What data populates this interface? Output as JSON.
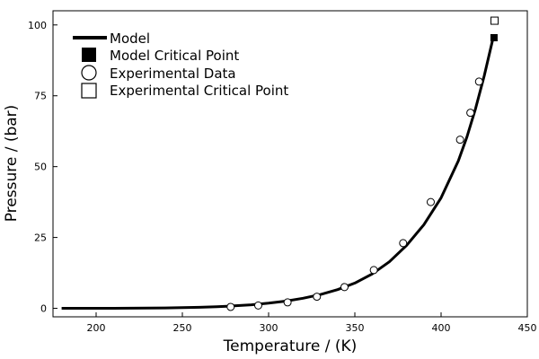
{
  "chart_data": {
    "type": "line",
    "title": "",
    "xlabel": "Temperature / (K)",
    "ylabel": "Pressure / (bar)",
    "xlim": [
      175,
      450
    ],
    "ylim": [
      -3,
      105
    ],
    "xticks": [
      200,
      250,
      300,
      350,
      400,
      450
    ],
    "yticks": [
      0,
      25,
      50,
      75,
      100
    ],
    "grid": false,
    "legend_position": "top-left",
    "series": [
      {
        "name": "Model",
        "kind": "line",
        "color": "#000000",
        "x": [
          180,
          200,
          220,
          240,
          260,
          270,
          280,
          290,
          300,
          310,
          320,
          330,
          340,
          350,
          360,
          370,
          380,
          390,
          400,
          410,
          415,
          420,
          425,
          430
        ],
        "y": [
          0.0,
          0.0,
          0.05,
          0.15,
          0.35,
          0.55,
          0.85,
          1.25,
          1.8,
          2.55,
          3.55,
          4.85,
          6.6,
          8.9,
          12.1,
          16.4,
          22.2,
          29.5,
          39.0,
          52.0,
          60.5,
          70.5,
          82.0,
          95.0
        ]
      },
      {
        "name": "Model Critical Point",
        "kind": "marker",
        "marker": "filled-square",
        "x": [
          430.7
        ],
        "y": [
          95.5
        ]
      },
      {
        "name": "Experimental Data",
        "kind": "marker",
        "marker": "open-circle",
        "x": [
          278,
          294,
          311,
          328,
          344,
          361,
          378,
          394,
          411,
          417,
          422
        ],
        "y": [
          0.5,
          1.0,
          2.1,
          4.1,
          7.5,
          13.5,
          23.0,
          37.5,
          59.5,
          69.0,
          80.0
        ]
      },
      {
        "name": "Experimental Critical Point",
        "kind": "marker",
        "marker": "open-square",
        "x": [
          431.0
        ],
        "y": [
          101.5
        ]
      }
    ]
  }
}
